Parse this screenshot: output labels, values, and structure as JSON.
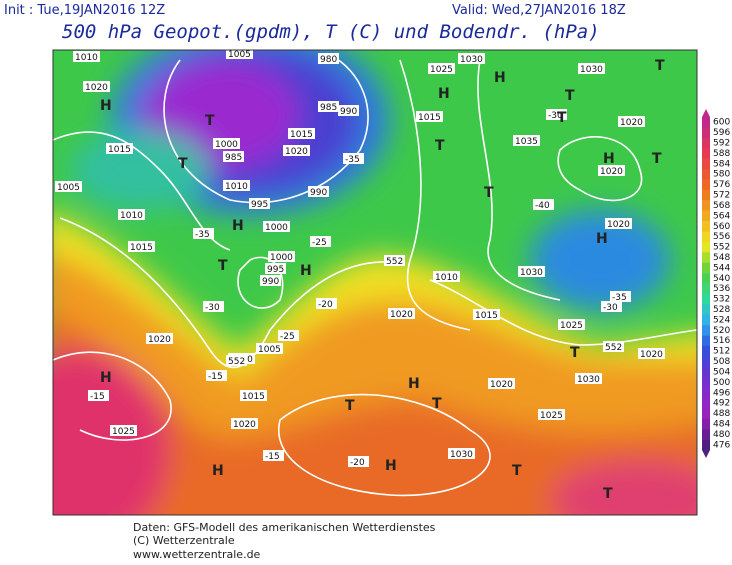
{
  "header": {
    "init": "Init : Tue,19JAN2016 12Z",
    "valid": "Valid: Wed,27JAN2016 18Z",
    "title": "500 hPa Geopot.(gpdm), T (C) und Bodendr. (hPa)"
  },
  "colorbar": {
    "ticks": [
      600,
      596,
      592,
      588,
      584,
      580,
      576,
      572,
      568,
      564,
      560,
      556,
      552,
      548,
      544,
      540,
      536,
      532,
      528,
      524,
      520,
      516,
      512,
      508,
      504,
      500,
      496,
      492,
      488,
      484,
      480,
      476
    ]
  },
  "map_labels": [
    "1010",
    "1020",
    "1015",
    "1005",
    "1010",
    "1015",
    "1005",
    "1000",
    "985",
    "1010",
    "995",
    "1000",
    "1015",
    "1020",
    "990",
    "990",
    "985",
    "980",
    "1025",
    "1030",
    "1015",
    "1035",
    "1030",
    "1020",
    "1020",
    "1020",
    "1030",
    "1025",
    "1000",
    "995",
    "990",
    "1020",
    "1005",
    "1010",
    "1015",
    "1020",
    "1025",
    "1020",
    "1015",
    "1010",
    "1020",
    "1025",
    "1030",
    "1020",
    "1030",
    "-35",
    "-30",
    "-25",
    "-20",
    "-15",
    "-15",
    "-15",
    "-20",
    "-25",
    "-35",
    "-30",
    "-40",
    "-35",
    "-30",
    "552",
    "552",
    "552",
    "H",
    "T",
    "T",
    "T",
    "H",
    "H",
    "H",
    "T",
    "H",
    "T",
    "H",
    "H",
    "T",
    "T",
    "T",
    "H",
    "H",
    "T",
    "H",
    "T",
    "T",
    "H",
    "T",
    "T",
    "T"
  ],
  "footer": [
    "Daten: GFS-Modell des amerikanischen Wetterdienstes",
    "(C) Wetterzentrale",
    "www.wetterzentrale.de"
  ]
}
